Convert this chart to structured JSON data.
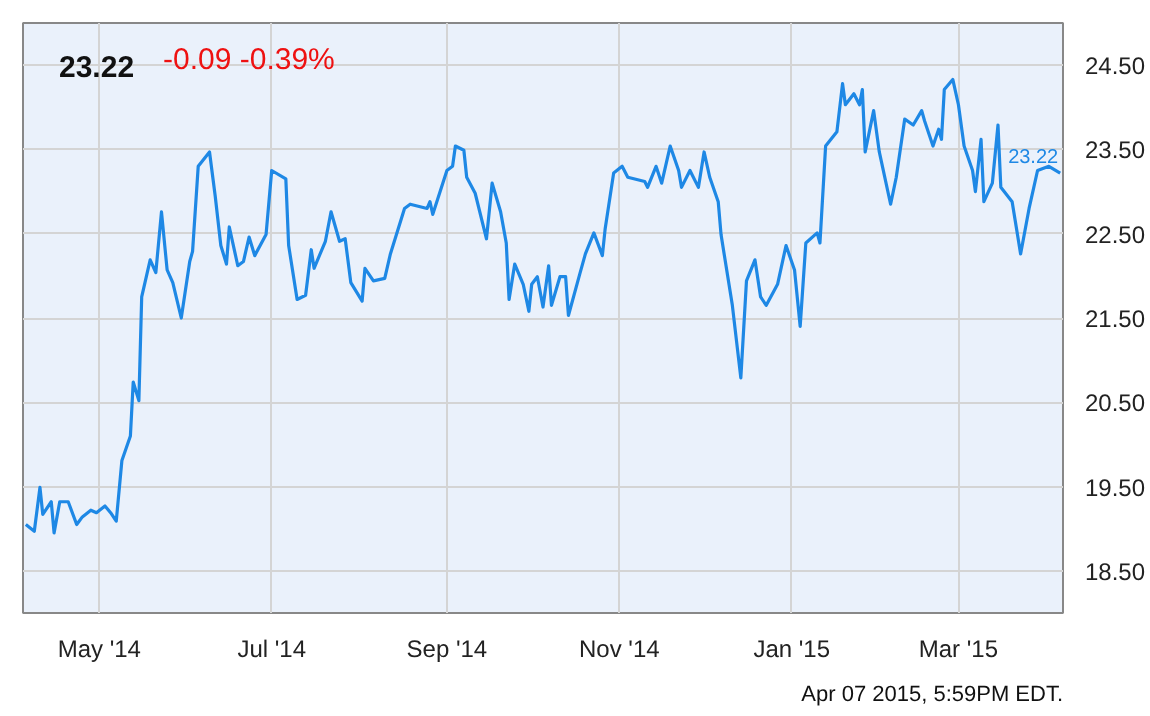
{
  "chart_data": {
    "type": "line",
    "title": "23.22",
    "subtitle": "-0.09  -0.39%",
    "x": [
      "2014-04-05",
      "2014-04-08",
      "2014-04-10",
      "2014-04-11",
      "2014-04-14",
      "2014-04-15",
      "2014-04-17",
      "2014-04-20",
      "2014-04-23",
      "2014-04-25",
      "2014-04-28",
      "2014-04-30",
      "2014-05-03",
      "2014-05-05",
      "2014-05-07",
      "2014-05-09",
      "2014-05-12",
      "2014-05-13",
      "2014-05-15",
      "2014-05-16",
      "2014-05-19",
      "2014-05-21",
      "2014-05-23",
      "2014-05-25",
      "2014-05-27",
      "2014-05-30",
      "2014-06-02",
      "2014-06-03",
      "2014-06-05",
      "2014-06-09",
      "2014-06-11",
      "2014-06-13",
      "2014-06-15",
      "2014-06-16",
      "2014-06-19",
      "2014-06-21",
      "2014-06-23",
      "2014-06-25",
      "2014-06-29",
      "2014-07-01",
      "2014-07-06",
      "2014-07-07",
      "2014-07-10",
      "2014-07-13",
      "2014-07-15",
      "2014-07-16",
      "2014-07-20",
      "2014-07-22",
      "2014-07-25",
      "2014-07-27",
      "2014-07-29",
      "2014-08-02",
      "2014-08-03",
      "2014-08-06",
      "2014-08-10",
      "2014-08-12",
      "2014-08-17",
      "2014-08-19",
      "2014-08-25",
      "2014-08-26",
      "2014-08-27",
      "2014-09-01",
      "2014-09-03",
      "2014-09-04",
      "2014-09-07",
      "2014-09-08",
      "2014-09-11",
      "2014-09-15",
      "2014-09-17",
      "2014-09-20",
      "2014-09-22",
      "2014-09-23",
      "2014-09-25",
      "2014-09-28",
      "2014-09-30",
      "2014-10-01",
      "2014-10-03",
      "2014-10-05",
      "2014-10-07",
      "2014-10-08",
      "2014-10-11",
      "2014-10-13",
      "2014-10-14",
      "2014-10-18",
      "2014-10-20",
      "2014-10-23",
      "2014-10-26",
      "2014-10-27",
      "2014-10-30",
      "2014-11-02",
      "2014-11-04",
      "2014-11-10",
      "2014-11-11",
      "2014-11-14",
      "2014-11-16",
      "2014-11-19",
      "2014-11-22",
      "2014-11-23",
      "2014-11-26",
      "2014-11-29",
      "2014-12-01",
      "2014-12-03",
      "2014-12-06",
      "2014-12-07",
      "2014-12-11",
      "2014-12-14",
      "2014-12-16",
      "2014-12-19",
      "2014-12-21",
      "2014-12-23",
      "2014-12-27",
      "2014-12-30",
      "2015-01-02",
      "2015-01-04",
      "2015-01-06",
      "2015-01-10",
      "2015-01-11",
      "2015-01-13",
      "2015-01-17",
      "2015-01-19",
      "2015-01-20",
      "2015-01-23",
      "2015-01-25",
      "2015-01-26",
      "2015-01-27",
      "2015-01-30",
      "2015-02-01",
      "2015-02-05",
      "2015-02-07",
      "2015-02-10",
      "2015-02-13",
      "2015-02-16",
      "2015-02-17",
      "2015-02-20",
      "2015-02-22",
      "2015-02-23",
      "2015-02-24",
      "2015-02-27",
      "2015-03-01",
      "2015-03-03",
      "2015-03-06",
      "2015-03-07",
      "2015-03-09",
      "2015-03-10",
      "2015-03-13",
      "2015-03-15",
      "2015-03-16",
      "2015-03-20",
      "2015-03-23",
      "2015-03-26",
      "2015-03-29",
      "2015-04-02",
      "2015-04-06"
    ],
    "series": [
      {
        "color": "#1e88e5",
        "values": [
          19.05,
          18.97,
          19.49,
          19.17,
          19.32,
          18.95,
          19.32,
          19.32,
          19.05,
          19.14,
          19.22,
          19.19,
          19.27,
          19.19,
          19.09,
          19.81,
          20.1,
          20.74,
          20.52,
          21.75,
          22.19,
          22.04,
          22.76,
          22.07,
          21.92,
          21.5,
          22.17,
          22.29,
          23.3,
          23.47,
          22.95,
          22.36,
          22.14,
          22.58,
          22.12,
          22.17,
          22.46,
          22.24,
          22.49,
          23.25,
          23.15,
          22.36,
          21.72,
          21.77,
          22.31,
          22.09,
          22.41,
          22.76,
          22.41,
          22.44,
          21.92,
          21.7,
          22.09,
          21.94,
          21.97,
          22.26,
          22.8,
          22.85,
          22.8,
          22.88,
          22.73,
          23.25,
          23.3,
          23.54,
          23.49,
          23.17,
          22.98,
          22.44,
          23.1,
          22.76,
          22.39,
          21.72,
          22.14,
          21.9,
          21.58,
          21.9,
          21.99,
          21.63,
          22.12,
          21.65,
          21.99,
          21.99,
          21.53,
          22.02,
          22.26,
          22.51,
          22.24,
          22.56,
          23.22,
          23.3,
          23.17,
          23.12,
          23.05,
          23.3,
          23.1,
          23.54,
          23.25,
          23.05,
          23.25,
          23.05,
          23.47,
          23.17,
          22.88,
          22.49,
          21.65,
          20.79,
          21.94,
          22.19,
          21.75,
          21.65,
          21.9,
          22.36,
          22.07,
          21.4,
          22.39,
          22.51,
          22.39,
          23.54,
          23.71,
          24.28,
          24.03,
          24.16,
          24.03,
          24.21,
          23.47,
          23.96,
          23.47,
          22.85,
          23.17,
          23.86,
          23.79,
          23.96,
          23.84,
          23.54,
          23.74,
          23.62,
          24.21,
          24.33,
          24.03,
          23.54,
          23.25,
          23.0,
          23.62,
          22.88,
          23.1,
          23.79,
          23.05,
          22.88,
          22.26,
          22.8,
          23.25,
          23.3,
          23.22
        ]
      }
    ],
    "xlim": [
      "2014-04-04",
      "2015-04-07"
    ],
    "xticks": [
      {
        "value": "2014-05-01",
        "label": "May '14"
      },
      {
        "value": "2014-07-01",
        "label": "Jul '14"
      },
      {
        "value": "2014-09-01",
        "label": "Sep '14"
      },
      {
        "value": "2014-11-01",
        "label": "Nov '14"
      },
      {
        "value": "2015-01-01",
        "label": "Jan '15"
      },
      {
        "value": "2015-03-01",
        "label": "Mar '15"
      }
    ],
    "ylim": [
      18,
      25
    ],
    "yticks": [
      {
        "value": 18.5,
        "label": "18.50"
      },
      {
        "value": 19.5,
        "label": "19.50"
      },
      {
        "value": 20.5,
        "label": "20.50"
      },
      {
        "value": 21.5,
        "label": "21.50"
      },
      {
        "value": 22.5,
        "label": "22.50"
      },
      {
        "value": 23.5,
        "label": "23.50"
      },
      {
        "value": 24.5,
        "label": "24.50"
      }
    ],
    "grid": true,
    "annotations": [
      {
        "text": "23.22",
        "x": "2015-04-06",
        "y": 23.22
      },
      "Apr 07 2015, 5:59PM EDT."
    ]
  }
}
